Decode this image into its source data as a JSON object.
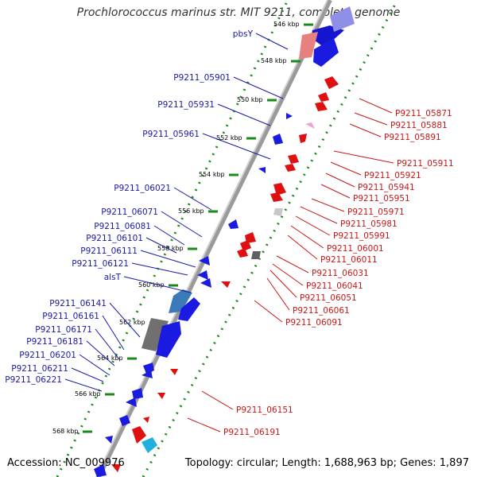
{
  "title": "Prochlorococcus marinus str. MIT 9211, complete genome",
  "footer": {
    "accession": "Accession: NC_009976",
    "topology": "Topology: circular; Length: 1,688,963 bp; Genes: 1,897"
  },
  "colors": {
    "forward_gene": "#1010e0",
    "reverse_gene": "#e01010",
    "forward_label": "#1a1aa8",
    "reverse_label": "#c81818",
    "backbone": "#9a9a9a",
    "tick": "#1a8a1a"
  },
  "ticks": [
    "546 kbp",
    "548 kbp",
    "550 kbp",
    "552 kbp",
    "554 kbp",
    "556 kbp",
    "558 kbp",
    "560 kbp",
    "562 kbp",
    "564 kbp",
    "566 kbp",
    "568 kbp"
  ],
  "forward_labels": [
    "pbsY",
    "P9211_05901",
    "P9211_05931",
    "P9211_05961",
    "P9211_06021",
    "P9211_06071",
    "P9211_06081",
    "P9211_06101",
    "P9211_06111",
    "P9211_06121",
    "alsT",
    "P9211_06141",
    "P9211_06161",
    "P9211_06171",
    "P9211_06181",
    "P9211_06201",
    "P9211_06211",
    "P9211_06221"
  ],
  "reverse_labels": [
    "P9211_05871",
    "P9211_05881",
    "P9211_05891",
    "P9211_05911",
    "P9211_05921",
    "P9211_05941",
    "P9211_05951",
    "P9211_05971",
    "P9211_05981",
    "P9211_05991",
    "P9211_06001",
    "P9211_06011",
    "P9211_06031",
    "P9211_06041",
    "P9211_06051",
    "P9211_06061",
    "P9211_06091",
    "P9211_06151",
    "P9211_06191"
  ]
}
